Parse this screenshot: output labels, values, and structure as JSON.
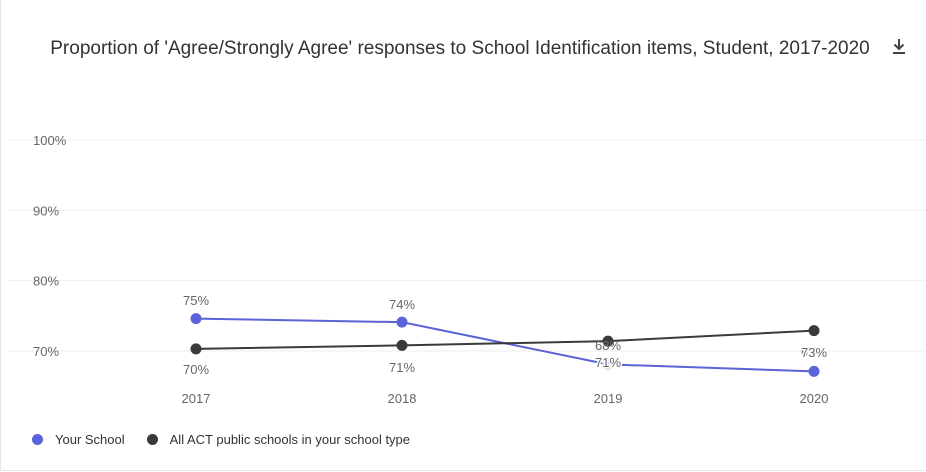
{
  "chart_data": {
    "type": "line",
    "title": "Proportion of 'Agree/Strongly Agree' responses to School Identification items, Student, 2017-2020",
    "categories": [
      "2017",
      "2018",
      "2019",
      "2020"
    ],
    "y_ticks": [
      "100%",
      "90%",
      "80%",
      "70%"
    ],
    "ylim": [
      66,
      100
    ],
    "grid": true,
    "legend_position": "bottom-left",
    "series": [
      {
        "name": "Your School",
        "color": "#5b63d8",
        "values": [
          74.6,
          74.1,
          68.1,
          67.1
        ],
        "labels": [
          "75%",
          "74%",
          "68%",
          "67%"
        ]
      },
      {
        "name": "All ACT public schools in your school type",
        "color": "#3a3a3a",
        "values": [
          70.3,
          70.8,
          71.4,
          72.9
        ],
        "labels": [
          "70%",
          "71%",
          "71%",
          "73%"
        ]
      }
    ]
  },
  "toolbar": {
    "download_icon": "download-icon"
  }
}
